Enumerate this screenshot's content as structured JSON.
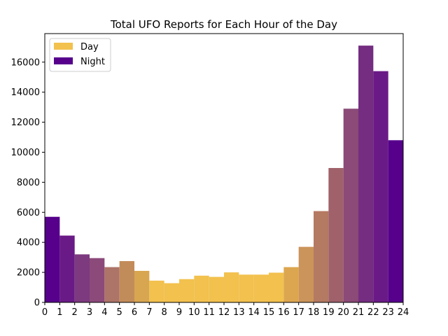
{
  "chart_data": {
    "type": "bar",
    "title": "Total UFO Reports for Each Hour of the Day",
    "xlabel": "",
    "ylabel": "",
    "xlim": [
      0,
      24
    ],
    "ylim": [
      0,
      17900
    ],
    "xticks": [
      "0",
      "1",
      "2",
      "3",
      "4",
      "5",
      "6",
      "7",
      "8",
      "9",
      "10",
      "11",
      "12",
      "13",
      "14",
      "15",
      "16",
      "17",
      "18",
      "19",
      "20",
      "21",
      "22",
      "23",
      "24"
    ],
    "yticks": [
      "0",
      "2000",
      "4000",
      "6000",
      "8000",
      "10000",
      "12000",
      "14000",
      "16000"
    ],
    "grid": false,
    "legend_position": "top-left",
    "legend": [
      {
        "name": "Day",
        "color": "#f2c14e"
      },
      {
        "name": "Night",
        "color": "#56008c"
      }
    ],
    "categories": [
      "0",
      "1",
      "2",
      "3",
      "4",
      "5",
      "6",
      "7",
      "8",
      "9",
      "10",
      "11",
      "12",
      "13",
      "14",
      "15",
      "16",
      "17",
      "18",
      "19",
      "20",
      "21",
      "22",
      "23"
    ],
    "values": [
      5700,
      4450,
      3200,
      2950,
      2350,
      2750,
      2100,
      1450,
      1280,
      1550,
      1780,
      1700,
      2000,
      1850,
      1850,
      1980,
      2350,
      3700,
      6080,
      8950,
      12900,
      17100,
      15400,
      10800
    ],
    "colors": [
      "#56008c",
      "#6a1a86",
      "#7d3a7f",
      "#8b4a7a",
      "#ad7468",
      "#c28c5a",
      "#d8a650",
      "#f2c14e",
      "#f2c14e",
      "#f2c14e",
      "#f2c14e",
      "#f2c14e",
      "#f2c14e",
      "#f2c14e",
      "#f2c14e",
      "#f2c14e",
      "#dca650",
      "#cb945a",
      "#b47a62",
      "#a0616b",
      "#8b4a77",
      "#742d80",
      "#6a1a86",
      "#56008c"
    ]
  }
}
